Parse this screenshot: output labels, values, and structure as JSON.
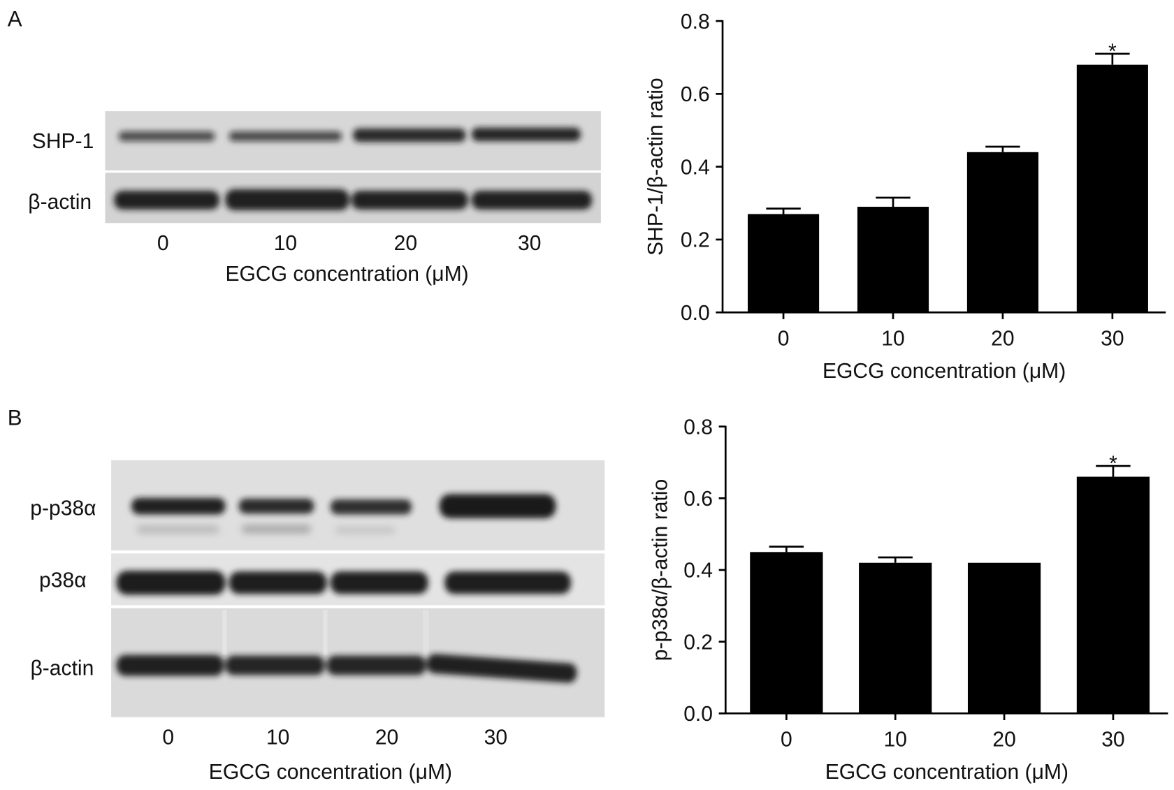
{
  "figure": {
    "panels": [
      {
        "label": "A",
        "blot": {
          "rows": [
            "SHP-1",
            "β-actin"
          ],
          "lanes": [
            "0",
            "10",
            "20",
            "30"
          ],
          "xlabel": "EGCG concentration (μM)"
        }
      },
      {
        "label": "B",
        "blot": {
          "rows": [
            "p-p38α",
            "p38α",
            "β-actin"
          ],
          "lanes": [
            "0",
            "10",
            "20",
            "30"
          ],
          "xlabel": "EGCG concentration (μM)"
        }
      }
    ],
    "colors": {
      "bar": "#000000",
      "axis": "#000000",
      "text": "#111111"
    }
  },
  "chart_data": [
    {
      "type": "bar",
      "categories": [
        "0",
        "10",
        "20",
        "30"
      ],
      "values": [
        0.27,
        0.29,
        0.44,
        0.68
      ],
      "error": [
        0.015,
        0.025,
        0.015,
        0.03
      ],
      "annotations": [
        "",
        "",
        "",
        "*"
      ],
      "xlabel": "EGCG concentration (μM)",
      "ylabel": "SHP-1/β-actin ratio",
      "ylim": [
        0,
        0.8
      ],
      "yticks": [
        0,
        0.2,
        0.4,
        0.6,
        0.8
      ],
      "ytick_labels": [
        "0.0",
        "0.2",
        "0.4",
        "0.6",
        "0.8"
      ],
      "grid": false,
      "legend": "none"
    },
    {
      "type": "bar",
      "categories": [
        "0",
        "10",
        "20",
        "30"
      ],
      "values": [
        0.45,
        0.42,
        0.42,
        0.66
      ],
      "error": [
        0.015,
        0.015,
        0,
        0.03
      ],
      "annotations": [
        "",
        "",
        "",
        "*"
      ],
      "xlabel": "EGCG concentration (μM)",
      "ylabel": "p-p38α/β-actin ratio",
      "ylim": [
        0,
        0.8
      ],
      "yticks": [
        0,
        0.2,
        0.4,
        0.6,
        0.8
      ],
      "ytick_labels": [
        "0.0",
        "0.2",
        "0.4",
        "0.6",
        "0.8"
      ],
      "grid": false,
      "legend": "none"
    }
  ]
}
